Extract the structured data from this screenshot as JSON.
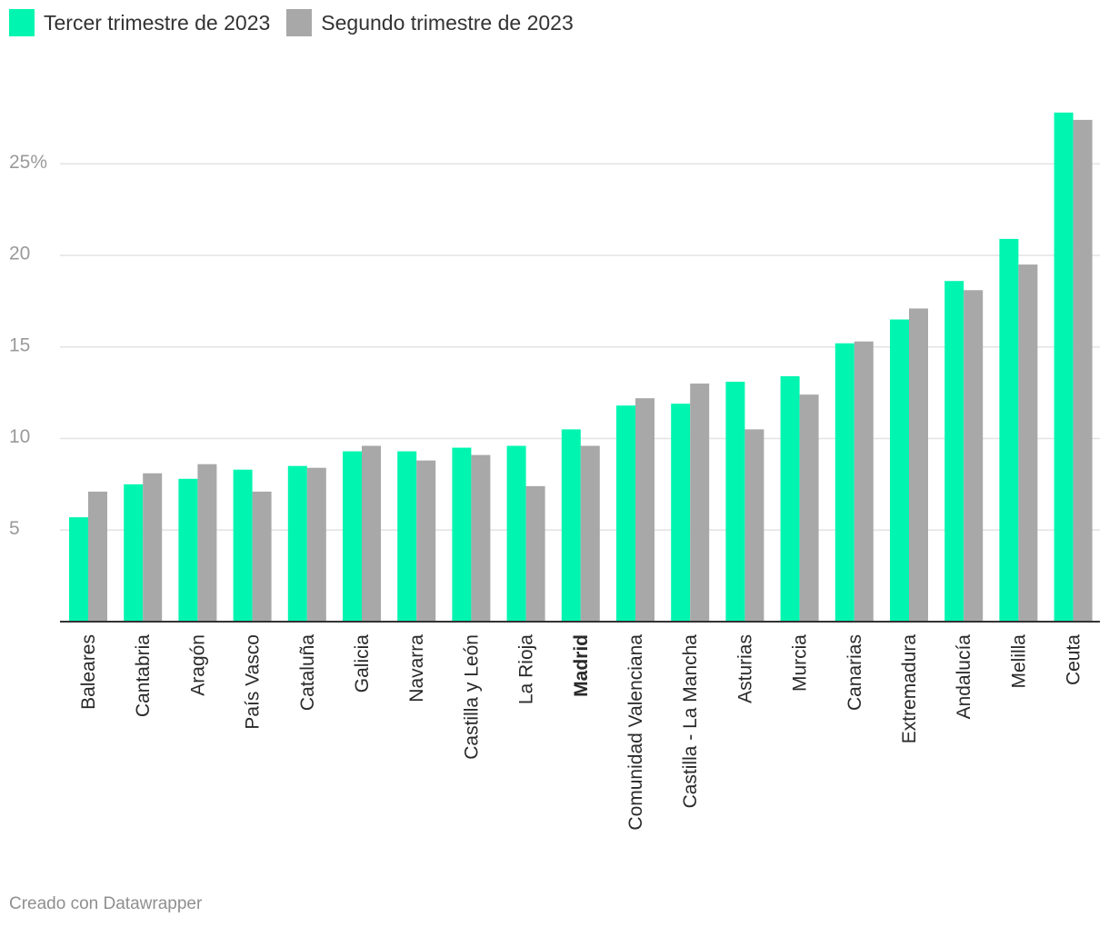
{
  "legend": {
    "items": [
      {
        "label": "Tercer trimestre de 2023",
        "color": "#00f5b0"
      },
      {
        "label": "Segundo trimestre de 2023",
        "color": "#a8a8a8"
      }
    ]
  },
  "footer": {
    "credit": "Creado con Datawrapper"
  },
  "chart_data": {
    "type": "bar",
    "categories": [
      "Baleares",
      "Cantabria",
      "Aragón",
      "País Vasco",
      "Cataluña",
      "Galicia",
      "Navarra",
      "Castilla y León",
      "La Rioja",
      "Madrid",
      "Comunidad Valenciana",
      "Castilla - La Mancha",
      "Asturias",
      "Murcia",
      "Canarias",
      "Extremadura",
      "Andalucía",
      "Melilla",
      "Ceuta"
    ],
    "highlighted_category": "Madrid",
    "series": [
      {
        "name": "Tercer trimestre de 2023",
        "color": "#00f5b0",
        "values": [
          5.7,
          7.5,
          7.8,
          8.3,
          8.5,
          9.3,
          9.3,
          9.5,
          9.6,
          10.5,
          11.8,
          11.9,
          13.1,
          13.4,
          15.2,
          16.5,
          18.6,
          20.9,
          27.8
        ]
      },
      {
        "name": "Segundo trimestre de 2023",
        "color": "#a8a8a8",
        "values": [
          7.1,
          8.1,
          8.6,
          7.1,
          8.4,
          9.6,
          8.8,
          9.1,
          7.4,
          9.6,
          12.2,
          13.0,
          10.5,
          12.4,
          15.3,
          17.1,
          18.1,
          19.5,
          27.4
        ]
      }
    ],
    "y_ticks": [
      {
        "value": 5,
        "label": "5"
      },
      {
        "value": 10,
        "label": "10"
      },
      {
        "value": 15,
        "label": "15"
      },
      {
        "value": 20,
        "label": "20"
      },
      {
        "value": 25,
        "label": "25%"
      }
    ],
    "ylim": [
      0,
      28
    ],
    "grid": true,
    "legend_position": "top-left",
    "title": "",
    "xlabel": "",
    "ylabel": ""
  }
}
